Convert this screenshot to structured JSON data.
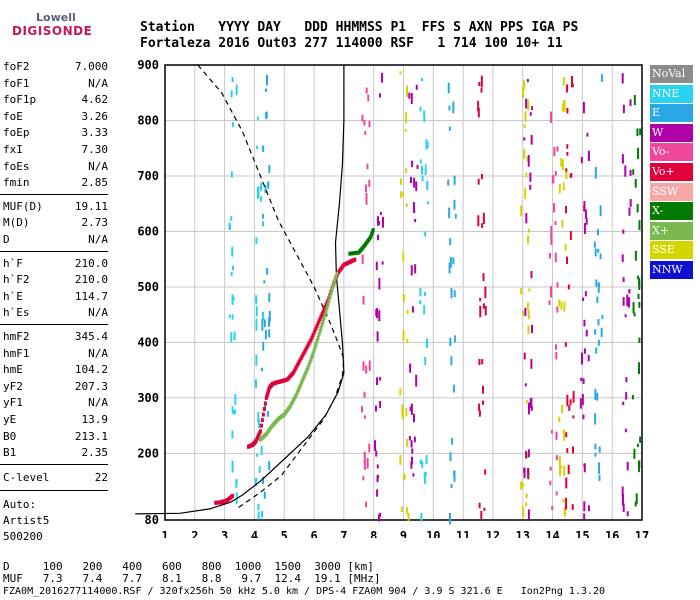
{
  "logo": {
    "line1": "Lowell",
    "line2": "DIGISONDE"
  },
  "header": {
    "row1": "Station   YYYY DAY   DDD HHMMSS P1  FFS S AXN PPS IGA PS",
    "row2": "Fortaleza 2016 Out03 277 114000 RSF   1 714 100 10+ 11"
  },
  "params_group1": [
    {
      "k": "foF2",
      "v": "7.000"
    },
    {
      "k": "foF1",
      "v": "N/A"
    },
    {
      "k": "foF1p",
      "v": "4.62"
    },
    {
      "k": "foE",
      "v": "3.26"
    },
    {
      "k": "foEp",
      "v": "3.33"
    },
    {
      "k": "fxI",
      "v": "7.30"
    },
    {
      "k": "foEs",
      "v": "N/A"
    },
    {
      "k": "fmin",
      "v": "2.85"
    }
  ],
  "params_group2": [
    {
      "k": "MUF(D)",
      "v": "19.11"
    },
    {
      "k": "M(D)",
      "v": "2.73"
    },
    {
      "k": "D",
      "v": "N/A"
    }
  ],
  "params_group3": [
    {
      "k": "h`F",
      "v": "210.0"
    },
    {
      "k": "h`F2",
      "v": "210.0"
    },
    {
      "k": "h`E",
      "v": "114.7"
    },
    {
      "k": "h`Es",
      "v": "N/A"
    }
  ],
  "params_group4": [
    {
      "k": "hmF2",
      "v": "345.4"
    },
    {
      "k": "hmF1",
      "v": "N/A"
    },
    {
      "k": "hmE",
      "v": "104.2"
    },
    {
      "k": "yF2",
      "v": "207.3"
    },
    {
      "k": "yF1",
      "v": "N/A"
    },
    {
      "k": "yE",
      "v": "13.9"
    },
    {
      "k": "B0",
      "v": "213.1"
    },
    {
      "k": "B1",
      "v": "2.35"
    }
  ],
  "clevel": {
    "k": "C-level",
    "v": "22"
  },
  "autoscale": {
    "line1": "Auto:",
    "line2": "Artist5",
    "line3": "500200"
  },
  "legend": [
    {
      "label": "NoVal",
      "color": "#8c8c8c"
    },
    {
      "label": "NNE",
      "color": "#29d3f0"
    },
    {
      "label": "E",
      "color": "#2aa8e6"
    },
    {
      "label": "W",
      "color": "#b000a8"
    },
    {
      "label": "Vo-",
      "color": "#f0479a"
    },
    {
      "label": "Vo+",
      "color": "#e0003a"
    },
    {
      "label": "SSW",
      "color": "#f4a8a8"
    },
    {
      "label": "X-",
      "color": "#007a00"
    },
    {
      "label": "X+",
      "color": "#7ab850"
    },
    {
      "label": "SSE",
      "color": "#d4d400"
    },
    {
      "label": "NNW",
      "color": "#1010d0"
    }
  ],
  "footer": {
    "d_row": "D     100   200   400   600   800  1000  1500  3000 [km]",
    "muf_row": "MUF   7.3   7.4   7.7   8.1   8.8   9.7  12.4  19.1 [MHz]",
    "file_row": "FZA0M_2016277114000.RSF / 320fx256h 50 kHz 5.0 km / DPS-4 FZA0M 904 / 3.9 S 321.6 E   Ion2Png 1.3.20"
  },
  "chart_data": {
    "type": "scatter",
    "xlabel": "",
    "ylabel": "",
    "x_ticks": [
      1,
      2,
      3,
      4,
      5,
      6,
      7,
      8,
      9,
      10,
      11,
      12,
      13,
      14,
      15,
      16,
      17
    ],
    "y_ticks": [
      200,
      300,
      400,
      500,
      600,
      700,
      800
    ],
    "y_tick_labels_extra": [
      "80",
      "900"
    ],
    "xlim": [
      1,
      17
    ],
    "ylim": [
      80,
      900
    ],
    "grid": true,
    "series": [
      {
        "name": "Vo+",
        "color": "#e0003a",
        "points": [
          [
            3.8,
            212
          ],
          [
            3.95,
            216
          ],
          [
            4.05,
            222
          ],
          [
            4.2,
            240
          ],
          [
            4.4,
            300
          ],
          [
            4.5,
            318
          ],
          [
            4.6,
            325
          ],
          [
            4.75,
            328
          ],
          [
            4.9,
            330
          ],
          [
            5.1,
            333
          ],
          [
            5.3,
            345
          ],
          [
            5.5,
            365
          ],
          [
            5.7,
            385
          ],
          [
            5.9,
            405
          ],
          [
            6.1,
            430
          ],
          [
            6.3,
            455
          ],
          [
            6.5,
            480
          ],
          [
            6.65,
            505
          ],
          [
            6.8,
            525
          ],
          [
            7.0,
            540
          ],
          [
            7.2,
            545
          ],
          [
            7.4,
            550
          ]
        ]
      },
      {
        "name": "X+",
        "color": "#7ab850",
        "points": [
          [
            4.2,
            225
          ],
          [
            4.4,
            235
          ],
          [
            4.6,
            250
          ],
          [
            4.8,
            262
          ],
          [
            5.0,
            270
          ],
          [
            5.2,
            285
          ],
          [
            5.4,
            305
          ],
          [
            5.6,
            330
          ],
          [
            5.8,
            355
          ],
          [
            6.0,
            385
          ],
          [
            6.2,
            420
          ],
          [
            6.4,
            455
          ],
          [
            6.6,
            495
          ],
          [
            6.8,
            530
          ]
        ]
      },
      {
        "name": "X-",
        "color": "#007a00",
        "points": [
          [
            7.2,
            560
          ],
          [
            7.5,
            562
          ],
          [
            7.7,
            575
          ],
          [
            7.9,
            590
          ],
          [
            8.0,
            605
          ]
        ]
      },
      {
        "name": "Vo+",
        "color": "#e0003a",
        "points": [
          [
            2.7,
            111
          ],
          [
            2.9,
            112
          ],
          [
            3.1,
            116
          ],
          [
            3.3,
            125
          ]
        ]
      }
    ],
    "profile_solid": [
      [
        0,
        91
      ],
      [
        1.5,
        92
      ],
      [
        2.5,
        100
      ],
      [
        3.2,
        112
      ],
      [
        3.6,
        125
      ],
      [
        4.2,
        150
      ],
      [
        5.0,
        190
      ],
      [
        5.8,
        230
      ],
      [
        6.4,
        270
      ],
      [
        6.8,
        310
      ],
      [
        7.0,
        345
      ],
      [
        6.95,
        400
      ],
      [
        6.85,
        460
      ],
      [
        6.75,
        520
      ],
      [
        6.72,
        580
      ],
      [
        6.85,
        650
      ],
      [
        6.95,
        720
      ],
      [
        7.0,
        800
      ],
      [
        7.0,
        900
      ]
    ],
    "profile_dashed": [
      [
        2.1,
        900
      ],
      [
        2.9,
        850
      ],
      [
        3.6,
        780
      ],
      [
        4.2,
        700
      ],
      [
        4.8,
        620
      ],
      [
        5.4,
        560
      ],
      [
        6.0,
        500
      ],
      [
        6.5,
        440
      ],
      [
        6.8,
        400
      ],
      [
        7.0,
        370
      ],
      [
        6.95,
        340
      ],
      [
        6.7,
        300
      ],
      [
        6.3,
        260
      ],
      [
        5.6,
        210
      ],
      [
        4.9,
        160
      ],
      [
        4.2,
        130
      ],
      [
        3.8,
        115
      ],
      [
        3.4,
        100
      ]
    ],
    "scatter_noise": [
      {
        "x": 3.25,
        "color": "#29d3f0"
      },
      {
        "x": 4.15,
        "color": "#29d3f0"
      },
      {
        "x": 4.35,
        "color": "#2aa8e6"
      },
      {
        "x": 7.7,
        "color": "#f0479a"
      },
      {
        "x": 8.15,
        "color": "#b000a8"
      },
      {
        "x": 9.0,
        "color": "#d4d400"
      },
      {
        "x": 9.3,
        "color": "#b000a8"
      },
      {
        "x": 9.65,
        "color": "#29d3f0"
      },
      {
        "x": 10.6,
        "color": "#2aa8e6"
      },
      {
        "x": 11.6,
        "color": "#e0003a"
      },
      {
        "x": 13.05,
        "color": "#d4d400"
      },
      {
        "x": 13.15,
        "color": "#b000a8"
      },
      {
        "x": 14.0,
        "color": "#f0479a"
      },
      {
        "x": 14.3,
        "color": "#d4d400"
      },
      {
        "x": 14.55,
        "color": "#e0003a"
      },
      {
        "x": 15.05,
        "color": "#b000a8"
      },
      {
        "x": 15.5,
        "color": "#2aa8e6"
      },
      {
        "x": 16.45,
        "color": "#b000a8"
      },
      {
        "x": 16.8,
        "color": "#007a00"
      }
    ]
  }
}
